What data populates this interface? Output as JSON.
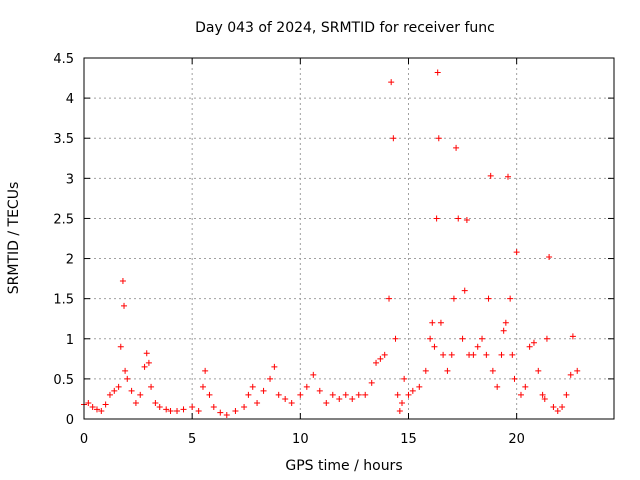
{
  "chart_data": {
    "type": "scatter",
    "title": "Day 043 of 2024, SRMTID for receiver func",
    "xlabel": "GPS time / hours",
    "ylabel": "SRMTID / TECUs",
    "xlim": [
      0,
      24.5
    ],
    "ylim": [
      0,
      4.5
    ],
    "xticks": [
      "0",
      "5",
      "10",
      "15",
      "20"
    ],
    "xtick_values": [
      0,
      5,
      10,
      15,
      20
    ],
    "yticks": [
      "0",
      "0.5",
      "1",
      "1.5",
      "2",
      "2.5",
      "3",
      "3.5",
      "4",
      "4.5"
    ],
    "ytick_values": [
      0,
      0.5,
      1,
      1.5,
      2,
      2.5,
      3,
      3.5,
      4,
      4.5
    ],
    "grid": true,
    "marker": "+",
    "series": [
      {
        "name": "SRMTID",
        "color": "#ff0000",
        "x": [
          0.0,
          0.2,
          0.4,
          0.6,
          0.8,
          1.0,
          1.2,
          1.4,
          1.6,
          1.7,
          1.8,
          1.85,
          1.9,
          2.0,
          2.2,
          2.4,
          2.6,
          2.8,
          2.9,
          3.0,
          3.1,
          3.3,
          3.5,
          3.8,
          4.0,
          4.3,
          4.6,
          5.0,
          5.3,
          5.5,
          5.6,
          5.8,
          6.0,
          6.3,
          6.6,
          7.0,
          7.4,
          7.6,
          7.8,
          8.0,
          8.3,
          8.6,
          8.8,
          9.0,
          9.3,
          9.6,
          10.0,
          10.3,
          10.6,
          10.9,
          11.2,
          11.5,
          11.8,
          12.1,
          12.4,
          12.7,
          13.0,
          13.3,
          13.5,
          13.7,
          13.9,
          14.1,
          14.2,
          14.3,
          14.4,
          14.5,
          14.6,
          14.7,
          14.8,
          15.0,
          15.2,
          15.5,
          15.8,
          16.0,
          16.1,
          16.2,
          16.3,
          16.35,
          16.4,
          16.5,
          16.6,
          16.8,
          17.0,
          17.1,
          17.2,
          17.3,
          17.5,
          17.6,
          17.7,
          17.8,
          18.0,
          18.2,
          18.4,
          18.6,
          18.7,
          18.8,
          18.9,
          19.1,
          19.3,
          19.4,
          19.5,
          19.6,
          19.7,
          19.8,
          19.9,
          20.0,
          20.2,
          20.4,
          20.6,
          20.8,
          21.0,
          21.2,
          21.3,
          21.4,
          21.5,
          21.7,
          21.9,
          22.1,
          22.3,
          22.5,
          22.6,
          22.8
        ],
        "y": [
          0.18,
          0.2,
          0.15,
          0.12,
          0.1,
          0.18,
          0.3,
          0.35,
          0.4,
          0.9,
          1.72,
          1.41,
          0.6,
          0.5,
          0.35,
          0.2,
          0.3,
          0.65,
          0.82,
          0.7,
          0.4,
          0.2,
          0.15,
          0.12,
          0.1,
          0.1,
          0.12,
          0.15,
          0.1,
          0.4,
          0.6,
          0.3,
          0.15,
          0.08,
          0.05,
          0.1,
          0.15,
          0.3,
          0.4,
          0.2,
          0.35,
          0.5,
          0.65,
          0.3,
          0.25,
          0.2,
          0.3,
          0.4,
          0.55,
          0.35,
          0.2,
          0.3,
          0.25,
          0.3,
          0.25,
          0.3,
          0.3,
          0.45,
          0.7,
          0.75,
          0.8,
          1.5,
          4.2,
          3.5,
          1.0,
          0.3,
          0.1,
          0.2,
          0.5,
          0.3,
          0.35,
          0.4,
          0.6,
          1.0,
          1.2,
          0.9,
          2.5,
          4.32,
          3.5,
          1.2,
          0.8,
          0.6,
          0.8,
          1.5,
          3.38,
          2.5,
          1.0,
          1.6,
          2.48,
          0.8,
          0.8,
          0.9,
          1.0,
          0.8,
          1.5,
          3.03,
          0.6,
          0.4,
          0.8,
          1.1,
          1.2,
          3.02,
          1.5,
          0.8,
          0.5,
          2.08,
          0.3,
          0.4,
          0.9,
          0.95,
          0.6,
          0.3,
          0.25,
          1.0,
          2.02,
          0.15,
          0.1,
          0.15,
          0.3,
          0.55,
          1.03,
          0.6
        ]
      }
    ]
  }
}
